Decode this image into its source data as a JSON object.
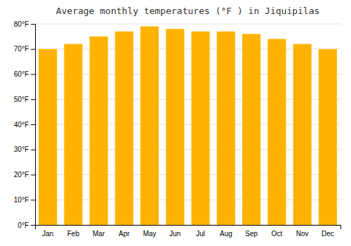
{
  "chart_data": {
    "type": "bar",
    "title": "Average monthly temperatures (°F ) in Jiquipilas",
    "categories": [
      "Jan",
      "Feb",
      "Mar",
      "Apr",
      "May",
      "Jun",
      "Jul",
      "Aug",
      "Sep",
      "Oct",
      "Nov",
      "Dec"
    ],
    "values": [
      70,
      72,
      75,
      77,
      79,
      78,
      77,
      77,
      76,
      74,
      72,
      70
    ],
    "color": "#FFB300",
    "ylim": [
      0,
      80
    ],
    "yticks": [
      {
        "value": 0,
        "label": "0°F"
      },
      {
        "value": 10,
        "label": "10°F"
      },
      {
        "value": 20,
        "label": "20°F"
      },
      {
        "value": 30,
        "label": "30°F"
      },
      {
        "value": 40,
        "label": "40°F"
      },
      {
        "value": 50,
        "label": "50°F"
      },
      {
        "value": 60,
        "label": "60°F"
      },
      {
        "value": 70,
        "label": "70°F"
      },
      {
        "value": 80,
        "label": "80°F"
      }
    ],
    "grid": true
  }
}
